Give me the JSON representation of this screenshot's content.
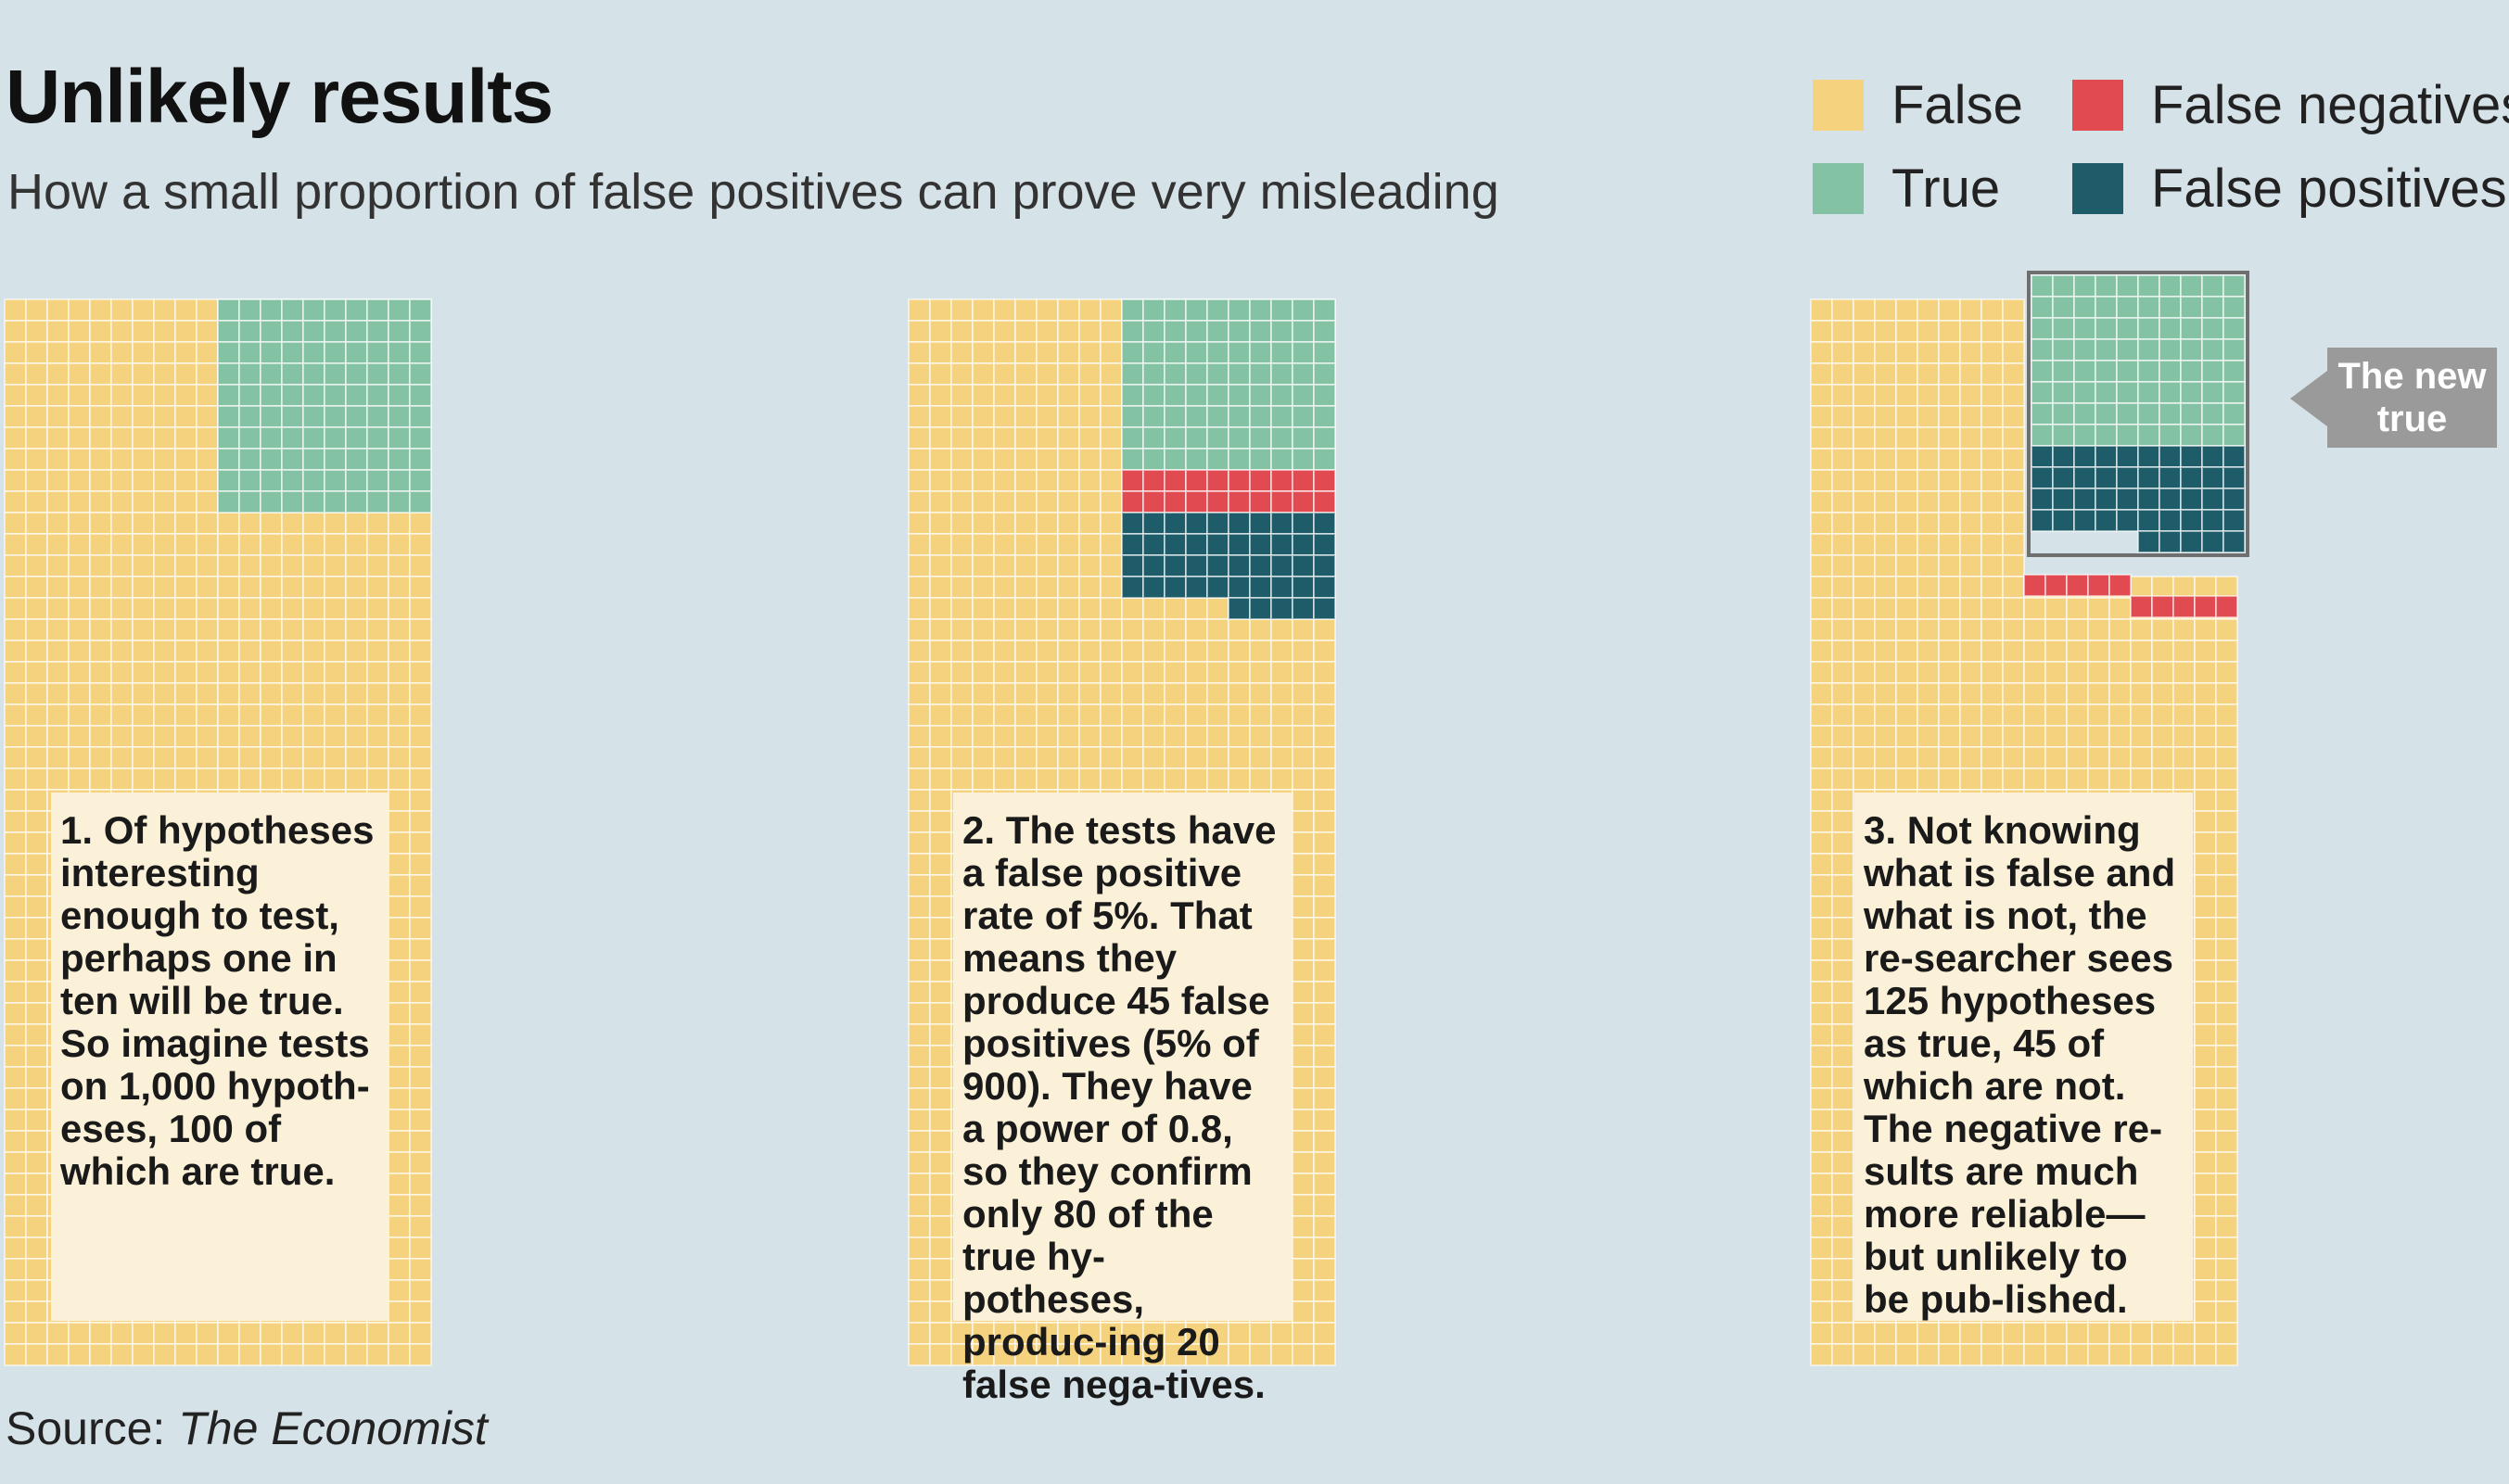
{
  "title": "Unlikely results",
  "subtitle": "How a small proportion of false positives can prove very misleading",
  "legend": {
    "items": [
      {
        "label": "False",
        "color": "#f5d27e"
      },
      {
        "label": "False negatives",
        "color": "#e04a50"
      },
      {
        "label": "True",
        "color": "#84c2a4"
      },
      {
        "label": "False positives",
        "color": "#1e5c6a"
      }
    ]
  },
  "panels": [
    {
      "num": "1.",
      "text": "Of hypotheses interesting enough to test, perhaps one in ten will be true. So imagine tests on 1,000 hypoth-eses, 100 of which are true."
    },
    {
      "num": "2.",
      "text": "The tests have a false positive rate of 5%. That means they produce 45 false positives (5% of 900). They have a power of 0.8, so they confirm only 80 of the true hy-potheses, produc-ing 20 false nega-tives."
    },
    {
      "num": "3.",
      "text": "Not knowing what is false and what is not, the re-searcher sees 125 hypotheses as true, 45 of which are not. The negative re-sults are much more reliable—but unlikely to be pub-lished."
    }
  ],
  "callout": "The new true",
  "source_prefix": "Source:",
  "source_name": "The Economist",
  "chart_data": {
    "type": "waffle",
    "total_hypotheses": 1000,
    "panels": [
      {
        "panel": 1,
        "false": 900,
        "true": 100
      },
      {
        "panel": 2,
        "false": 855,
        "true": 80,
        "false_negatives": 20,
        "false_positives": 45
      },
      {
        "panel": 3,
        "false": 855,
        "true": 80,
        "false_negatives": 20,
        "false_positives": 45,
        "seen_as_true": 125
      }
    ],
    "colors": {
      "false": "#f5d27e",
      "true": "#84c2a4",
      "false_negatives": "#e04a50",
      "false_positives": "#1e5c6a"
    }
  }
}
